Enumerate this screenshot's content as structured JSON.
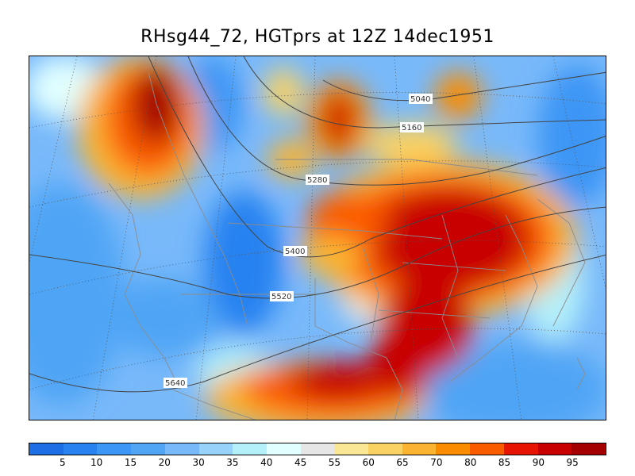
{
  "title": "RHsg44_72, HGTprs at 12Z  14dec1951",
  "contours": [
    {
      "value": "5040"
    },
    {
      "value": "5160"
    },
    {
      "value": "5280"
    },
    {
      "value": "5400"
    },
    {
      "value": "5520"
    },
    {
      "value": "5640"
    }
  ],
  "colorbar": {
    "colors": [
      "#1e6ee6",
      "#2882f0",
      "#3c96f5",
      "#50a5f5",
      "#78b9fa",
      "#96d2fa",
      "#b4f0fa",
      "#e1ffff",
      "#e6e6e6",
      "#fae796",
      "#fad264",
      "#fab432",
      "#fa8c00",
      "#fa5a00",
      "#e61400",
      "#c80000",
      "#a50000"
    ],
    "labels": [
      "5",
      "10",
      "15",
      "20",
      "30",
      "35",
      "40",
      "45",
      "55",
      "60",
      "65",
      "70",
      "80",
      "85",
      "90",
      "95"
    ]
  }
}
